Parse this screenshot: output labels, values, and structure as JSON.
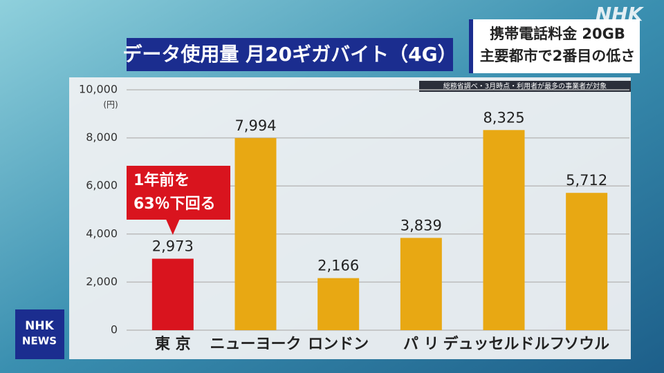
{
  "chart_data": {
    "type": "bar",
    "title": "データ使用量 月20ギガバイト（4G）",
    "headline": [
      "携帯電話料金 20GB",
      "主要都市で2番目の低さ"
    ],
    "source": "総務省調べ・3月時点・利用者が最多の事業者が対象",
    "y_unit": "(円)",
    "annotation": [
      "1年前を",
      "63％下回る"
    ],
    "categories": [
      "東 京",
      "ニューヨーク",
      "ロンドン",
      "パ リ",
      "デュッセルドルフ",
      "ソウル"
    ],
    "values": [
      2973,
      7994,
      2166,
      3839,
      8325,
      5712
    ],
    "value_labels": [
      "2,973",
      "7,994",
      "2,166",
      "3,839",
      "8,325",
      "5,712"
    ],
    "colors": [
      "#d9141e",
      "#e8a813",
      "#e8a813",
      "#e8a813",
      "#e8a813",
      "#e8a813"
    ],
    "ylim": [
      0,
      10000
    ],
    "yticks": [
      0,
      {
        "value": 2000,
        "label": "2,000"
      },
      {
        "value": 4000,
        "label": "4,000"
      },
      {
        "value": 6000,
        "label": "6,000"
      },
      {
        "value": 8000,
        "label": "8,000"
      },
      {
        "value": 10000,
        "label": "10,000"
      }
    ],
    "grid": true,
    "logo": "NHK",
    "news_logo": [
      "NHK",
      "NEWS"
    ]
  }
}
